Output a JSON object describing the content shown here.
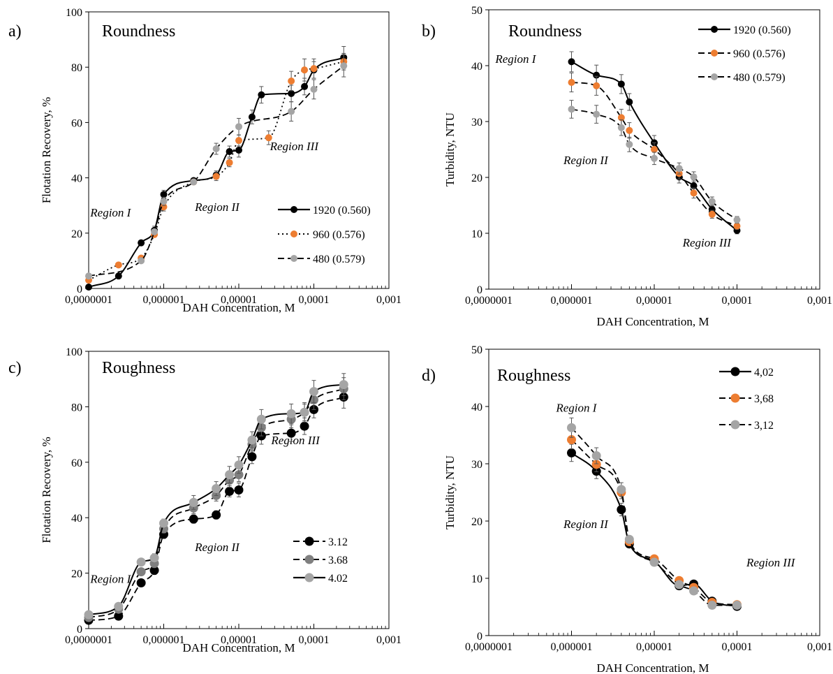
{
  "chart_data": [
    {
      "id": "a",
      "type": "scatter",
      "panel_label": "a)",
      "title": "Roundness",
      "xlabel": "DAH Concentration, M",
      "ylabel": "Flotation Recovery, %",
      "xscale": "log",
      "xlim": [
        1e-07,
        0.001
      ],
      "ylim": [
        0,
        100
      ],
      "xticks": [
        1e-07,
        1e-06,
        1e-05,
        0.0001,
        0.001
      ],
      "xtick_labels": [
        "0,0000001",
        "0,000001",
        "0,00001",
        "0,0001",
        "0,001"
      ],
      "yticks": [
        0,
        20,
        40,
        60,
        80,
        100
      ],
      "ytick_labels": [
        "0",
        "20",
        "40",
        "60",
        "80",
        "100"
      ],
      "legend_position": "lower-right",
      "annotations": [
        {
          "text": "Region I",
          "x": 1.05e-07,
          "y": 26
        },
        {
          "text": "Region II",
          "x": 2.6e-06,
          "y": 28
        },
        {
          "text": "Region III",
          "x": 2.6e-05,
          "y": 50
        }
      ],
      "series": [
        {
          "name": "1920 (0.560)",
          "color": "#000000",
          "dash": "solid",
          "x": [
            1e-07,
            2.5e-07,
            5e-07,
            7.5e-07,
            1e-06,
            2.5e-06,
            5e-06,
            7.5e-06,
            1e-05,
            1.5e-05,
            2e-05,
            5e-05,
            7.5e-05,
            0.0001,
            0.00025
          ],
          "y": [
            0.5,
            4.5,
            16.5,
            21,
            34,
            39,
            41,
            49.5,
            50,
            62,
            70,
            70.5,
            73,
            79,
            83.5
          ],
          "err": [
            0,
            0,
            0,
            1.5,
            1.5,
            0,
            1.5,
            2,
            2.5,
            2.5,
            3,
            3,
            3,
            3,
            4
          ]
        },
        {
          "name": "960 (0.576)",
          "color": "#ed7d31",
          "dash": "dot",
          "x": [
            1e-07,
            2.5e-07,
            5e-07,
            7.5e-07,
            1e-06,
            2.5e-06,
            5e-06,
            7.5e-06,
            1e-05,
            2.5e-05,
            5e-05,
            7.5e-05,
            0.0001,
            0.00025
          ],
          "y": [
            3,
            8.5,
            11,
            19.5,
            29.5,
            38.5,
            40.5,
            45.5,
            53.5,
            54.5,
            75,
            79,
            79.5,
            82
          ],
          "err": [
            0,
            0,
            0,
            0,
            1.5,
            0,
            1.5,
            1.5,
            2,
            2.5,
            3.5,
            4,
            3.5,
            3
          ]
        },
        {
          "name": "480 (0.579)",
          "color": "#a5a5a5",
          "dash": "dash",
          "x": [
            1e-07,
            5e-07,
            7.5e-07,
            1e-06,
            2.5e-06,
            5e-06,
            1e-05,
            5e-05,
            0.0001,
            0.00025
          ],
          "y": [
            4.5,
            10,
            20.5,
            31.5,
            38.5,
            50.5,
            58.5,
            64,
            72,
            80.5
          ],
          "err": [
            0,
            0,
            0,
            1.5,
            0,
            2,
            3,
            3.5,
            3.5,
            4
          ]
        }
      ]
    },
    {
      "id": "b",
      "type": "scatter",
      "panel_label": "b)",
      "title": "Roundness",
      "xlabel": "DAH Concentration,  M",
      "ylabel": "Turbidity, NTU",
      "xscale": "log",
      "xlim": [
        1e-07,
        0.001
      ],
      "ylim": [
        0,
        50
      ],
      "xticks": [
        1e-07,
        1e-06,
        1e-05,
        0.0001,
        0.001
      ],
      "xtick_labels": [
        "0,0000001",
        "0,000001",
        "0,00001",
        "0,0001",
        "0,001"
      ],
      "yticks": [
        0,
        10,
        20,
        30,
        40,
        50
      ],
      "ytick_labels": [
        "0",
        "10",
        "20",
        "30",
        "40",
        "50"
      ],
      "legend_position": "top-right",
      "annotations": [
        {
          "text": "Region I",
          "x": 1.2e-07,
          "y": 40.5
        },
        {
          "text": "Region II",
          "x": 8e-07,
          "y": 22.4
        },
        {
          "text": "Region III",
          "x": 2.2e-05,
          "y": 7.6
        }
      ],
      "series": [
        {
          "name": "1920 (0.560)",
          "color": "#000000",
          "dash": "solid",
          "x": [
            1e-06,
            2e-06,
            4e-06,
            5e-06,
            1e-05,
            2e-05,
            3e-05,
            5e-05,
            0.0001
          ],
          "y": [
            40.7,
            38.3,
            36.7,
            33.5,
            26.2,
            20.1,
            18.5,
            14.3,
            10.5
          ],
          "err": [
            1.8,
            1.8,
            1.7,
            1.5,
            1.3,
            1.1,
            1,
            0.8,
            0.6
          ]
        },
        {
          "name": "960 (0.576)",
          "color": "#ed7d31",
          "dash": "dash",
          "x": [
            1e-06,
            2e-06,
            4e-06,
            5e-06,
            1e-05,
            2e-05,
            3e-05,
            5e-05,
            0.0001
          ],
          "y": [
            37,
            36.4,
            30.7,
            28.4,
            25,
            20.7,
            17.2,
            13.4,
            11.3
          ],
          "err": [
            1.7,
            1.7,
            1.5,
            1.4,
            1.2,
            1,
            0.9,
            0.7,
            0.6
          ]
        },
        {
          "name": "480 (0.579)",
          "color": "#a5a5a5",
          "dash": "dash",
          "x": [
            1e-06,
            2e-06,
            4e-06,
            5e-06,
            1e-05,
            2e-05,
            3e-05,
            5e-05,
            0.0001
          ],
          "y": [
            32.2,
            31.3,
            28.9,
            25.9,
            23.4,
            21.6,
            20.1,
            15.7,
            12.4
          ],
          "err": [
            1.6,
            1.6,
            1.4,
            1.3,
            1.1,
            1,
            0.9,
            0.8,
            0.6
          ]
        }
      ]
    },
    {
      "id": "c",
      "type": "scatter",
      "panel_label": "c)",
      "title": "Roughness",
      "xlabel": "DAH Concentration, M",
      "ylabel": "Flotation Recovery, %",
      "xscale": "log",
      "xlim": [
        1e-07,
        0.001
      ],
      "ylim": [
        0,
        100
      ],
      "xticks": [
        1e-07,
        1e-06,
        1e-05,
        0.0001,
        0.001
      ],
      "xtick_labels": [
        "0,0000001",
        "0,000001",
        "0,00001",
        "0,0001",
        "0,001"
      ],
      "yticks": [
        0,
        20,
        40,
        60,
        80,
        100
      ],
      "ytick_labels": [
        "0",
        "20",
        "40",
        "60",
        "80",
        "100"
      ],
      "legend_position": "lower-right",
      "annotations": [
        {
          "text": "Region I",
          "x": 1.05e-07,
          "y": 16.5
        },
        {
          "text": "Region II",
          "x": 2.6e-06,
          "y": 28
        },
        {
          "text": "Region III",
          "x": 2.7e-05,
          "y": 66.5
        }
      ],
      "series": [
        {
          "name": "3.12",
          "color": "#000000",
          "dash": "dash",
          "x": [
            1e-07,
            2.5e-07,
            5e-07,
            7.5e-07,
            1e-06,
            2.5e-06,
            5e-06,
            7.5e-06,
            1e-05,
            1.5e-05,
            2e-05,
            5e-05,
            7.5e-05,
            0.0001,
            0.00025
          ],
          "y": [
            3,
            4.5,
            16.5,
            21,
            34,
            39.5,
            41,
            49.5,
            50,
            62,
            69.5,
            70.5,
            73,
            79,
            83.5
          ],
          "err": [
            0,
            0,
            0,
            1.5,
            1.5,
            1.5,
            1.5,
            2,
            2.5,
            2.5,
            3,
            3,
            3,
            3,
            4
          ]
        },
        {
          "name": "3.68",
          "color": "#7f7f7f",
          "dash": "dash",
          "x": [
            1e-07,
            2.5e-07,
            5e-07,
            7.5e-07,
            1e-06,
            2.5e-06,
            5e-06,
            7.5e-06,
            1e-05,
            1.5e-05,
            2e-05,
            5e-05,
            7.5e-05,
            0.0001,
            0.00025
          ],
          "y": [
            4,
            7,
            20.5,
            23.5,
            36,
            43.5,
            48,
            53.5,
            55.5,
            66.5,
            72.5,
            75.5,
            78,
            82.5,
            86.5
          ],
          "err": [
            0,
            0,
            0,
            1.5,
            1.5,
            2,
            2,
            2.5,
            2.5,
            2.5,
            3,
            3,
            3,
            3.5,
            4
          ]
        },
        {
          "name": "4.02",
          "color": "#a5a5a5",
          "dash": "solid",
          "x": [
            1e-07,
            2.5e-07,
            5e-07,
            7.5e-07,
            1e-06,
            2.5e-06,
            5e-06,
            7.5e-06,
            1e-05,
            1.5e-05,
            2e-05,
            5e-05,
            7.5e-05,
            0.0001,
            0.00025
          ],
          "y": [
            5,
            8,
            24,
            25.5,
            38,
            45.5,
            50.5,
            55.5,
            59,
            68,
            75.5,
            77.5,
            78,
            85.5,
            88
          ],
          "err": [
            0,
            0,
            0,
            1.5,
            1.5,
            2.5,
            2.5,
            3,
            3,
            3,
            3.5,
            3.5,
            3.5,
            4,
            4
          ]
        }
      ]
    },
    {
      "id": "d",
      "type": "scatter",
      "panel_label": "d)",
      "title": "Roughness",
      "xlabel": "DAH Concentration,  M",
      "ylabel": "Turbidity, NTU",
      "xscale": "log",
      "xlim": [
        1e-07,
        0.001
      ],
      "ylim": [
        0,
        50
      ],
      "xticks": [
        1e-07,
        1e-06,
        1e-05,
        0.0001,
        0.001
      ],
      "xtick_labels": [
        "0,0000001",
        "0,000001",
        "0,00001",
        "0,0001",
        "0,001"
      ],
      "yticks": [
        0,
        10,
        20,
        30,
        40,
        50
      ],
      "ytick_labels": [
        "0",
        "10",
        "20",
        "30",
        "40",
        "50"
      ],
      "legend_position": "top-right",
      "annotations": [
        {
          "text": "Region I",
          "x": 6.5e-07,
          "y": 39.1
        },
        {
          "text": "Region II",
          "x": 8e-07,
          "y": 18.8
        },
        {
          "text": "Region III",
          "x": 0.00013,
          "y": 12.1
        }
      ],
      "series": [
        {
          "name": "4,02",
          "color": "#000000",
          "dash": "solid",
          "x": [
            1e-06,
            2e-06,
            4e-06,
            5e-06,
            1e-05,
            2e-05,
            3e-05,
            5e-05,
            0.0001
          ],
          "y": [
            31.9,
            28.7,
            22,
            16,
            13,
            8.7,
            9,
            6,
            5.1
          ],
          "err": [
            1.5,
            1.3,
            1.1,
            0.6,
            0.6,
            0.5,
            0.5,
            0.4,
            0.3
          ]
        },
        {
          "name": "3,68",
          "color": "#ed7d31",
          "dash": "dash",
          "x": [
            1e-06,
            2e-06,
            4e-06,
            5e-06,
            1e-05,
            2e-05,
            3e-05,
            5e-05,
            0.0001
          ],
          "y": [
            34.2,
            29.9,
            25,
            16.4,
            13.4,
            9.6,
            8.4,
            5.8,
            5.4
          ],
          "err": [
            1.6,
            1.3,
            1.1,
            0.6,
            0.6,
            0.5,
            0.5,
            0.4,
            0.3
          ]
        },
        {
          "name": "3,12",
          "color": "#a5a5a5",
          "dash": "dash",
          "x": [
            1e-06,
            2e-06,
            4e-06,
            5e-06,
            1e-05,
            2e-05,
            3e-05,
            5e-05,
            0.0001
          ],
          "y": [
            36.3,
            31.4,
            25.5,
            16.8,
            12.8,
            8.9,
            7.8,
            5.3,
            5.3
          ],
          "err": [
            1.7,
            1.4,
            1.2,
            0.6,
            0.6,
            0.5,
            0.5,
            0.4,
            0.3
          ]
        }
      ]
    }
  ]
}
